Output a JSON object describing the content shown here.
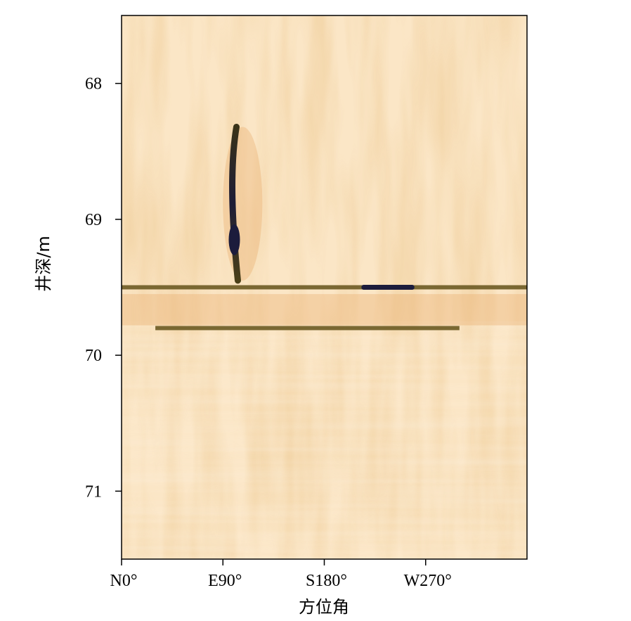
{
  "chart_data": {
    "type": "heatmap",
    "title": "",
    "xlabel": "方位角",
    "ylabel": "井深/m",
    "x_ticks": [
      {
        "value": 0,
        "label": "N0°"
      },
      {
        "value": 90,
        "label": "E90°"
      },
      {
        "value": 180,
        "label": "S180°"
      },
      {
        "value": 270,
        "label": "W270°"
      }
    ],
    "y_ticks": [
      {
        "value": 68,
        "label": "68"
      },
      {
        "value": 69,
        "label": "69"
      },
      {
        "value": 70,
        "label": "70"
      },
      {
        "value": 71,
        "label": "71"
      }
    ],
    "xlim": [
      0,
      360
    ],
    "ylim": [
      67.5,
      71.5
    ],
    "y_inverted": true,
    "colormap": {
      "light": "#fbe6c6",
      "mid": "#e8a867",
      "dark_olive": "#6b5a22",
      "darkest": "#1c1c3c"
    },
    "features": [
      {
        "name": "vertical fracture",
        "azimuth_range": [
          90,
          125
        ],
        "depth_range": [
          68.32,
          69.45
        ]
      },
      {
        "name": "horizontal fracture",
        "azimuth_range": [
          0,
          360
        ],
        "depth": 69.5
      },
      {
        "name": "horizontal fracture",
        "azimuth_range": [
          30,
          300
        ],
        "depth": 69.8
      },
      {
        "name": "dark conductive spot",
        "azimuth_range": [
          213,
          260
        ],
        "depth": 69.5
      }
    ]
  }
}
